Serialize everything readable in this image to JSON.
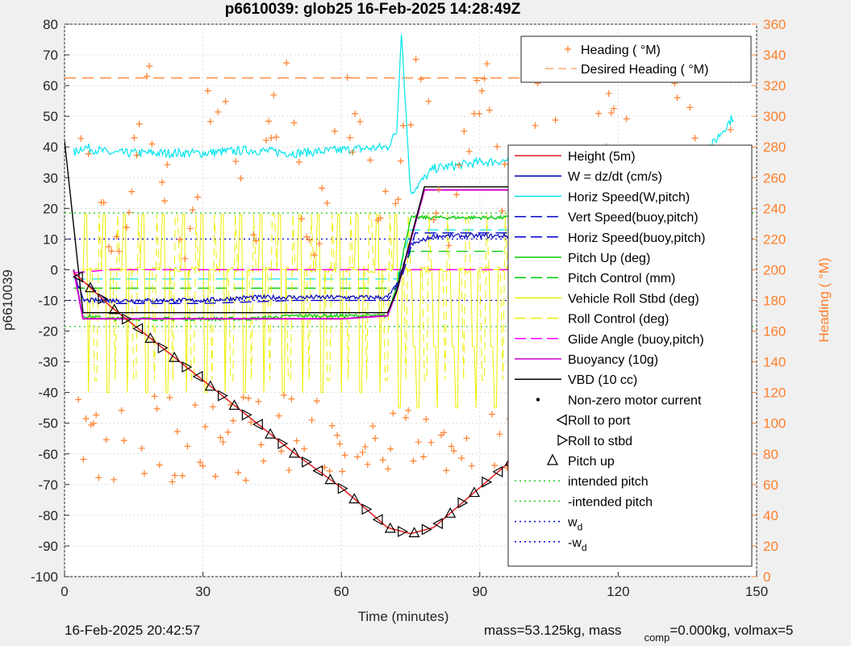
{
  "title": "p6610039: glob25 16-Feb-2025 14:28:49Z",
  "footer": {
    "date": "16-Feb-2025 20:42:57",
    "mass": "mass=53.125kg, mass",
    "comp_sub": "comp",
    "comp_rest": "=0.000kg, volmax=5"
  },
  "colors": {
    "height": "#e41a1c",
    "w": "#0000bb",
    "horiz_speed": "#00e5ee",
    "vert_speed_buoy": "#0000cc",
    "horiz_speed_buoy": "#0000cc",
    "pitch_up": "#00cc00",
    "pitch_control": "#00cc00",
    "roll_stbd": "#eeee00",
    "roll_control": "#eeee00",
    "glide_angle": "#ff00ff",
    "buoyancy": "#cc00cc",
    "vbd": "#000000",
    "heading": "#ff7f2a",
    "intended_pitch": "#22cc22",
    "w_d": "#0000dd"
  },
  "chart_data": {
    "type": "line",
    "title": "p6610039: glob25 16-Feb-2025 14:28:49Z",
    "xlabel": "Time (minutes)",
    "ylabel": "p6610039",
    "y2label": "Heading (  °M)",
    "xlim": [
      0,
      150
    ],
    "ylim": [
      -100,
      80
    ],
    "y2lim": [
      0,
      360
    ],
    "xticks": [
      "0",
      "30",
      "60",
      "90",
      "120",
      "150"
    ],
    "yticks": [
      "80",
      "70",
      "60",
      "50",
      "40",
      "30",
      "20",
      "10",
      "0",
      "-10",
      "-20",
      "-30",
      "-40",
      "-50",
      "-60",
      "-70",
      "-80",
      "-90",
      "-100"
    ],
    "y2ticks": [
      "360",
      "340",
      "320",
      "300",
      "280",
      "260",
      "240",
      "220",
      "200",
      "180",
      "160",
      "140",
      "120",
      "100",
      "80",
      "60",
      "40",
      "20",
      "0"
    ],
    "legend_top": [
      "Heading (  °M)",
      "Desired Heading (  °M)"
    ],
    "legend_main": [
      "Height (5m)",
      "W = dz/dt (cm/s)",
      "Horiz Speed(W,pitch)",
      "Vert Speed(buoy,pitch)",
      "Horiz Speed(buoy,pitch)",
      "Pitch Up (deg)",
      "Pitch Control (mm)",
      "Vehicle Roll Stbd (deg)",
      "Roll Control (deg)",
      "Glide Angle (buoy,pitch)",
      "Buoyancy (10g)",
      "VBD (10 cc)",
      "Non-zero motor current",
      "Roll to port",
      "Roll to stbd",
      "Pitch up",
      "intended pitch",
      "-intended pitch",
      "w_d",
      "-w_d"
    ],
    "series": [
      {
        "name": "Height (5m)",
        "x": [
          2,
          5,
          10,
          20,
          30,
          40,
          50,
          60,
          70,
          75,
          80,
          90,
          100,
          110,
          120,
          130,
          140,
          145
        ],
        "y": [
          -1,
          -5,
          -12,
          -24,
          -36,
          -48,
          -60,
          -71,
          -84,
          -86,
          -84,
          -71,
          -58,
          -46,
          -33,
          -20,
          -8,
          -1
        ]
      },
      {
        "name": "Horiz Speed(W,pitch)",
        "x": [
          2,
          4,
          10,
          20,
          30,
          40,
          50,
          60,
          70,
          72,
          73,
          75,
          80,
          90,
          100,
          110,
          120,
          130,
          140,
          145
        ],
        "y": [
          38,
          40,
          38,
          38,
          38,
          39,
          38,
          39,
          40,
          45,
          78,
          25,
          33,
          35,
          36,
          37,
          37,
          37,
          40,
          50
        ]
      },
      {
        "name": "Pitch Up (deg)",
        "x": [
          2,
          4,
          10,
          20,
          30,
          40,
          50,
          60,
          70,
          72,
          75,
          80,
          90,
          100,
          110,
          120,
          130,
          140,
          145
        ],
        "y": [
          0,
          -15,
          -16,
          -16,
          -16,
          -16,
          -15,
          -15,
          -15,
          -5,
          17,
          17,
          17,
          17,
          17,
          17,
          17,
          17,
          17
        ]
      },
      {
        "name": "W = dz/dt (cm/s)",
        "x": [
          2,
          4,
          10,
          20,
          30,
          40,
          50,
          60,
          70,
          72,
          75,
          80,
          90,
          100,
          110,
          120,
          130,
          140,
          145
        ],
        "y": [
          0,
          -10,
          -10,
          -10,
          -10,
          -9,
          -9,
          -9,
          -9,
          -5,
          8,
          11,
          11,
          11,
          12,
          12,
          12,
          12,
          12
        ]
      },
      {
        "name": "Buoyancy (10g)",
        "x": [
          2,
          4,
          10,
          20,
          30,
          40,
          50,
          60,
          70,
          72,
          78,
          125,
          128,
          131,
          145
        ],
        "y": [
          0,
          -16,
          -16,
          -16,
          -16,
          -16,
          -16,
          -16,
          -15,
          -7,
          26,
          26,
          28,
          31,
          32
        ]
      },
      {
        "name": "VBD (10 cc)",
        "x": [
          0,
          4,
          10,
          20,
          30,
          40,
          50,
          60,
          70,
          72,
          78,
          125,
          128,
          131,
          145
        ],
        "y": [
          42,
          -14,
          -14,
          -14,
          -14,
          -14,
          -14,
          -14,
          -14,
          -7,
          27,
          27,
          29,
          31,
          33
        ]
      },
      {
        "name": "Glide Angle (buoy,pitch)",
        "x": [
          2,
          10,
          30,
          50,
          70,
          72,
          75,
          100,
          120,
          145
        ],
        "y": [
          -1,
          0,
          0,
          0,
          0,
          0,
          0,
          0,
          0,
          0
        ]
      },
      {
        "name": "Vert Speed(buoy,pitch)",
        "x": [
          2,
          10,
          30,
          50,
          70,
          73,
          76,
          100,
          120,
          145
        ],
        "y": [
          -1,
          -11,
          -11,
          -10,
          -10,
          -3,
          12,
          12,
          12,
          13
        ]
      },
      {
        "name": "intended pitch",
        "x": [
          0,
          150
        ],
        "y": [
          18.5,
          18.5
        ]
      },
      {
        "name": "-intended pitch",
        "x": [
          0,
          150
        ],
        "y": [
          -18.5,
          -18.5
        ]
      },
      {
        "name": "w_d",
        "x": [
          0,
          150
        ],
        "y": [
          10,
          10
        ]
      },
      {
        "name": "-w_d",
        "x": [
          0,
          150
        ],
        "y": [
          -10,
          -10
        ]
      },
      {
        "name": "Desired Heading (  °M)",
        "x": [
          0,
          150
        ],
        "y2": [
          325,
          325
        ]
      }
    ]
  }
}
